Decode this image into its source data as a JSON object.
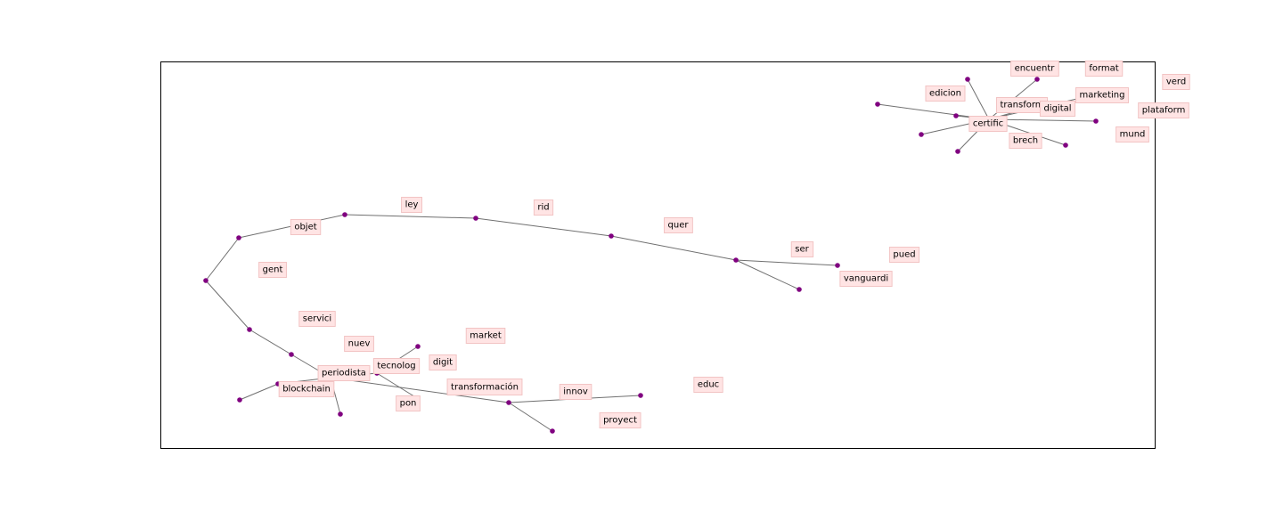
{
  "graph": {
    "type": "network",
    "frame": "axes-box",
    "node_color": "#800080",
    "edge_color": "#707070",
    "label_background": "#ffe4e4",
    "labels": [
      "encuentr",
      "format",
      "verd",
      "edicion",
      "marketing",
      "transform",
      "digital",
      "plataform",
      "certific",
      "mund",
      "brech",
      "ley",
      "rid",
      "objet",
      "quer",
      "ser",
      "pued",
      "gent",
      "vanguardi",
      "servici",
      "market",
      "nuev",
      "digit",
      "tecnolog",
      "periodista",
      "educ",
      "transformación",
      "blockchain",
      "innov",
      "pon",
      "proyect"
    ]
  }
}
